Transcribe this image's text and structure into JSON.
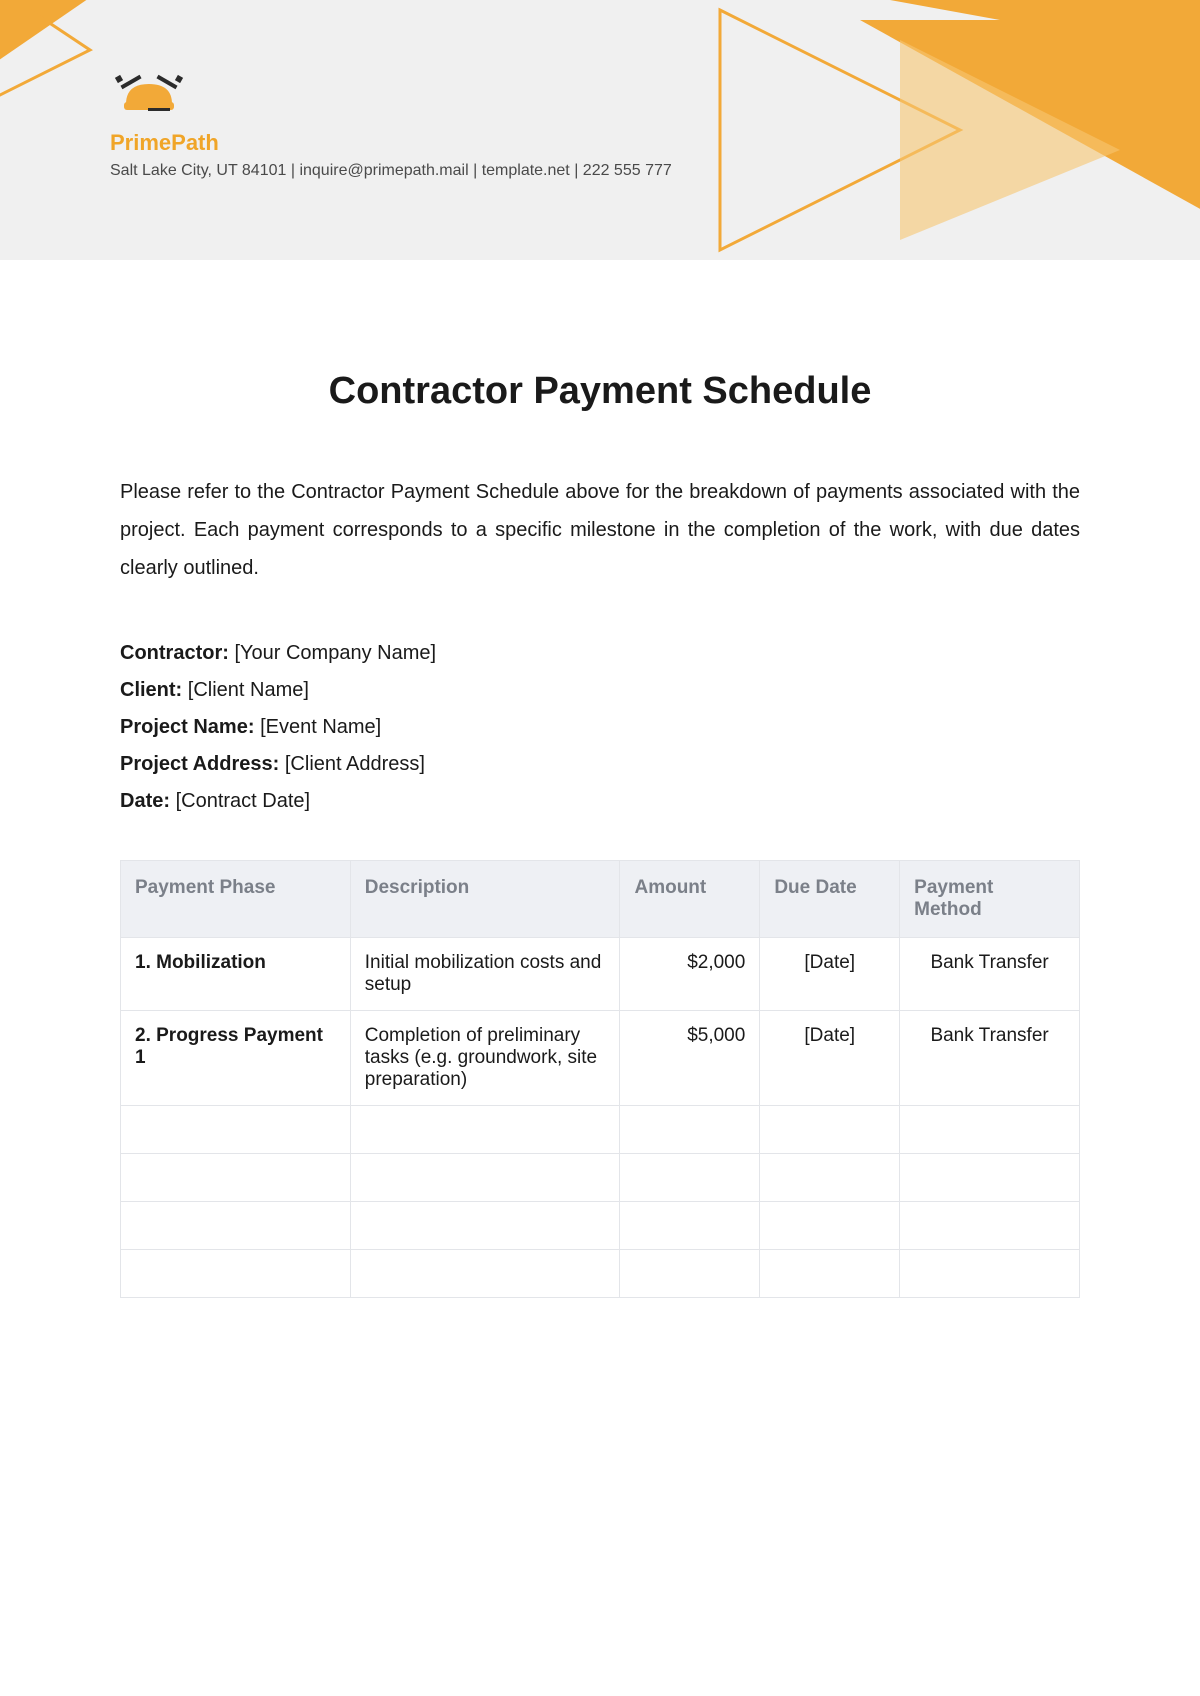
{
  "brand": {
    "name": "PrimePath",
    "name_color": "#f0a528",
    "contact_line": "Salt Lake City, UT 84101 | inquire@primepath.mail | template.net | 222 555 777",
    "contact_color": "#4a4a4a"
  },
  "colors": {
    "header_bg": "#f0f0f0",
    "accent": "#f2a938",
    "accent_light": "#f6c772",
    "text": "#1a1a1a",
    "table_header_bg": "#eef0f4",
    "table_header_text": "#7b8089",
    "table_border": "#e3e5e9"
  },
  "document": {
    "title": "Contractor Payment Schedule",
    "intro": "Please refer to the Contractor Payment Schedule above for the breakdown of payments associated with the project. Each payment corresponds to a specific milestone in the completion of the work, with due dates clearly outlined."
  },
  "meta": {
    "contractor_label": "Contractor:",
    "contractor_value": "[Your Company Name]",
    "client_label": "Client:",
    "client_value": "[Client Name]",
    "project_name_label": "Project Name:",
    "project_name_value": "[Event Name]",
    "project_address_label": "Project Address:",
    "project_address_value": "[Client Address]",
    "date_label": "Date:",
    "date_value": "[Contract Date]"
  },
  "table": {
    "columns": [
      "Payment Phase",
      "Description",
      "Amount",
      "Due Date",
      "Payment Method"
    ],
    "rows": [
      {
        "phase": "1. Mobilization",
        "desc": "Initial mobilization costs and setup",
        "amount": "$2,000",
        "due": "[Date]",
        "method": "Bank Transfer"
      },
      {
        "phase": "2. Progress Payment 1",
        "desc": "Completion of preliminary tasks (e.g. groundwork, site preparation)",
        "amount": "$5,000",
        "due": "[Date]",
        "method": "Bank Transfer"
      },
      {
        "phase": "",
        "desc": "",
        "amount": "",
        "due": "",
        "method": ""
      },
      {
        "phase": "",
        "desc": "",
        "amount": "",
        "due": "",
        "method": ""
      },
      {
        "phase": "",
        "desc": "",
        "amount": "",
        "due": "",
        "method": ""
      },
      {
        "phase": "",
        "desc": "",
        "amount": "",
        "due": "",
        "method": ""
      }
    ]
  }
}
